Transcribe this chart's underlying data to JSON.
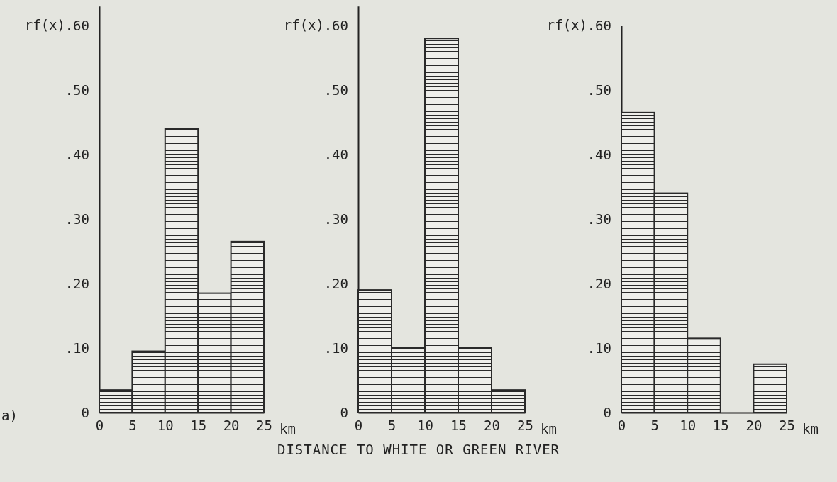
{
  "chart_data": [
    {
      "type": "histogram",
      "ylabel": "rf(x)",
      "xlabel": "km",
      "annotations": [
        "a)",
        "DISTANCE TO WHITE OR GREEN RIVER"
      ],
      "bins": [
        0,
        5,
        10,
        15,
        20,
        25
      ],
      "values": [
        0.035,
        0.095,
        0.44,
        0.185,
        0.265
      ],
      "color": "#2a2a2a",
      "xlim": [
        0,
        25
      ],
      "xticks": [
        0,
        5,
        10,
        15,
        20,
        25
      ],
      "ylim": [
        0,
        0.63
      ],
      "yticks": [
        {
          "value": 0,
          "label": "0"
        },
        {
          "value": 0.1,
          "label": ".10"
        },
        {
          "value": 0.2,
          "label": ".20"
        },
        {
          "value": 0.3,
          "label": ".30"
        },
        {
          "value": 0.4,
          "label": ".40"
        },
        {
          "value": 0.5,
          "label": ".50"
        },
        {
          "value": 0.6,
          "label": ".60"
        }
      ]
    },
    {
      "type": "histogram",
      "ylabel": "rf(x)",
      "xlabel": "km",
      "bins": [
        0,
        5,
        10,
        15,
        20,
        25
      ],
      "values": [
        0.19,
        0.1,
        0.58,
        0.1,
        0.035
      ],
      "color": "#2a2a2a",
      "xlim": [
        0,
        25
      ],
      "xticks": [
        0,
        5,
        10,
        15,
        20,
        25
      ],
      "ylim": [
        0,
        0.63
      ],
      "yticks": [
        {
          "value": 0,
          "label": "0"
        },
        {
          "value": 0.1,
          "label": ".10"
        },
        {
          "value": 0.2,
          "label": ".20"
        },
        {
          "value": 0.3,
          "label": ".30"
        },
        {
          "value": 0.4,
          "label": ".40"
        },
        {
          "value": 0.5,
          "label": ".50"
        },
        {
          "value": 0.6,
          "label": ".60"
        }
      ]
    },
    {
      "type": "histogram",
      "ylabel": "rf(x)",
      "xlabel": "km",
      "bins": [
        0,
        5,
        10,
        15,
        20,
        25
      ],
      "values": [
        0.465,
        0.34,
        0.115,
        0,
        0.075
      ],
      "color": "#2a2a2a",
      "xlim": [
        0,
        25
      ],
      "xticks": [
        0,
        5,
        10,
        15,
        20,
        25
      ],
      "ylim": [
        0,
        0.6
      ],
      "yticks": [
        {
          "value": 0,
          "label": "0"
        },
        {
          "value": 0.1,
          "label": ".10"
        },
        {
          "value": 0.2,
          "label": ".20"
        },
        {
          "value": 0.3,
          "label": ".30"
        },
        {
          "value": 0.4,
          "label": ".40"
        },
        {
          "value": 0.5,
          "label": ".50"
        },
        {
          "value": 0.6,
          "label": ".60"
        }
      ]
    }
  ]
}
